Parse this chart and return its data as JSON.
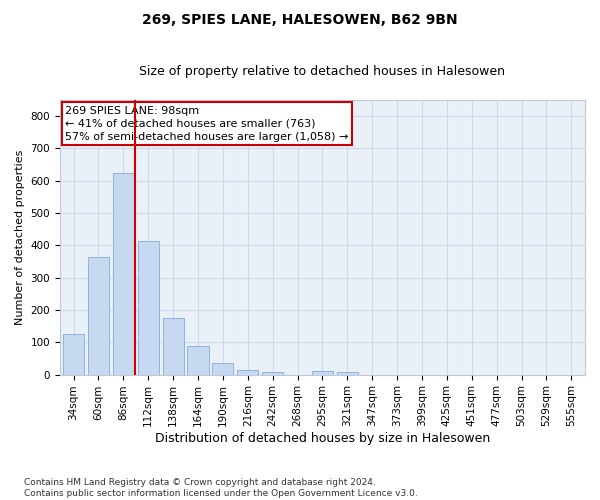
{
  "title1": "269, SPIES LANE, HALESOWEN, B62 9BN",
  "title2": "Size of property relative to detached houses in Halesowen",
  "xlabel": "Distribution of detached houses by size in Halesowen",
  "ylabel": "Number of detached properties",
  "categories": [
    "34sqm",
    "60sqm",
    "86sqm",
    "112sqm",
    "138sqm",
    "164sqm",
    "190sqm",
    "216sqm",
    "242sqm",
    "268sqm",
    "295sqm",
    "321sqm",
    "347sqm",
    "373sqm",
    "399sqm",
    "425sqm",
    "451sqm",
    "477sqm",
    "503sqm",
    "529sqm",
    "555sqm"
  ],
  "values": [
    125,
    365,
    625,
    415,
    175,
    87,
    35,
    15,
    8,
    0,
    10,
    8,
    0,
    0,
    0,
    0,
    0,
    0,
    0,
    0,
    0
  ],
  "bar_color": "#c6d9f1",
  "bar_edge_color": "#8db3e2",
  "bar_width": 0.85,
  "vline_color": "#cc0000",
  "annotation_text": "269 SPIES LANE: 98sqm\n← 41% of detached houses are smaller (763)\n57% of semi-detached houses are larger (1,058) →",
  "ylim": [
    0,
    850
  ],
  "yticks": [
    0,
    100,
    200,
    300,
    400,
    500,
    600,
    700,
    800
  ],
  "grid_color": "#d0d8e8",
  "bg_color": "#eaf0f8",
  "footnote": "Contains HM Land Registry data © Crown copyright and database right 2024.\nContains public sector information licensed under the Open Government Licence v3.0.",
  "title1_fontsize": 10,
  "title2_fontsize": 9,
  "annot_fontsize": 8,
  "xlabel_fontsize": 9,
  "ylabel_fontsize": 8,
  "footnote_fontsize": 6.5,
  "tick_fontsize": 7.5
}
